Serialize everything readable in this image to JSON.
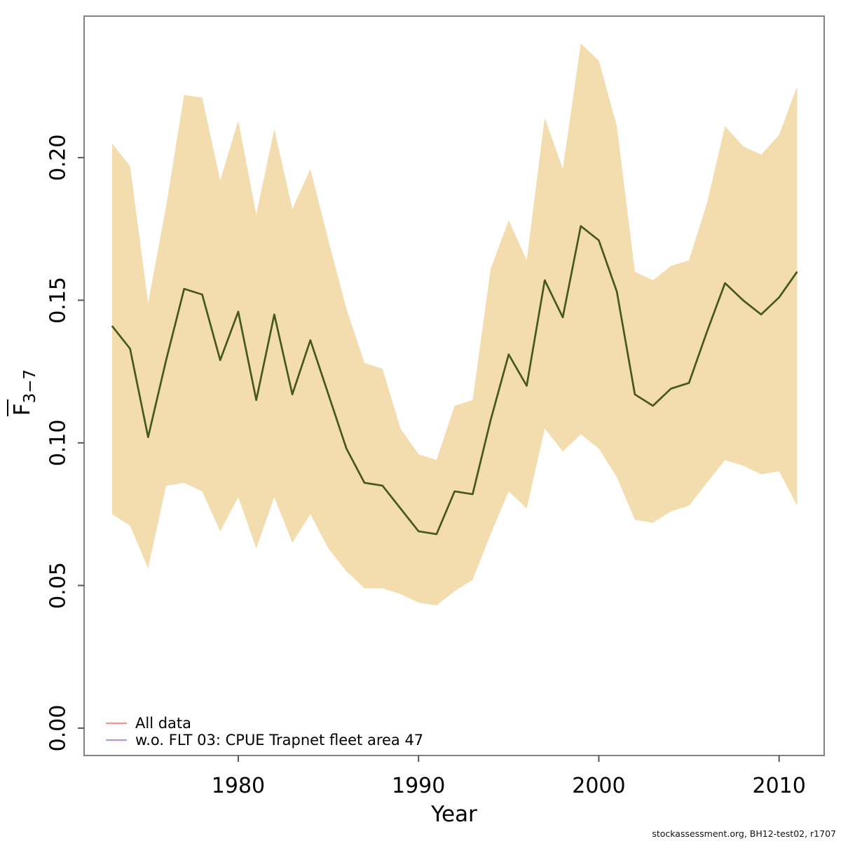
{
  "footer": "stockassessment.org, BH12-test02, r1707",
  "axes": {
    "x_label": "Year",
    "y_label_main": "F",
    "y_label_sub": "3−7",
    "x_ticks": [
      1980,
      1990,
      2000,
      2010
    ],
    "y_ticks": [
      "0.00",
      "0.05",
      "0.10",
      "0.15",
      "0.20"
    ],
    "x_range": [
      1971.45,
      2012.5
    ],
    "y_range": [
      -0.0096,
      0.2496
    ]
  },
  "legend": {
    "items": [
      {
        "label": "All data",
        "color": "#F79090"
      },
      {
        "label": "w.o. FLT 03: CPUE Trapnet fleet area 47",
        "color": "#B79BD0"
      }
    ]
  },
  "colors": {
    "band": "#F3DCAD",
    "line": "#46591D",
    "box": "#828282",
    "tick": "#555555"
  },
  "chart_data": {
    "type": "line",
    "title": "",
    "xlabel": "Year",
    "ylabel": "Fbar 3-7",
    "legend_position": "bottom-left",
    "grid": false,
    "xlim": [
      1971.45,
      2012.5
    ],
    "ylim": [
      -0.0096,
      0.2496
    ],
    "x": [
      1973,
      1974,
      1975,
      1976,
      1977,
      1978,
      1979,
      1980,
      1981,
      1982,
      1983,
      1984,
      1985,
      1986,
      1987,
      1988,
      1989,
      1990,
      1991,
      1992,
      1993,
      1994,
      1995,
      1996,
      1997,
      1998,
      1999,
      2000,
      2001,
      2002,
      2003,
      2004,
      2005,
      2006,
      2007,
      2008,
      2009,
      2010,
      2011
    ],
    "series": [
      {
        "name": "Fbar 3-7 estimate",
        "values": [
          0.141,
          0.133,
          0.102,
          0.129,
          0.154,
          0.152,
          0.129,
          0.146,
          0.115,
          0.145,
          0.117,
          0.136,
          0.117,
          0.098,
          0.086,
          0.085,
          0.077,
          0.069,
          0.068,
          0.083,
          0.082,
          0.108,
          0.131,
          0.12,
          0.157,
          0.144,
          0.176,
          0.171,
          0.153,
          0.117,
          0.113,
          0.119,
          0.121,
          0.139,
          0.156,
          0.15,
          0.145,
          0.151,
          0.16
        ]
      },
      {
        "name": "lower 95% CI",
        "values": [
          0.075,
          0.071,
          0.056,
          0.085,
          0.086,
          0.083,
          0.069,
          0.081,
          0.063,
          0.081,
          0.065,
          0.075,
          0.063,
          0.055,
          0.049,
          0.049,
          0.047,
          0.044,
          0.043,
          0.048,
          0.052,
          0.068,
          0.083,
          0.077,
          0.105,
          0.097,
          0.103,
          0.098,
          0.088,
          0.073,
          0.072,
          0.076,
          0.078,
          0.086,
          0.094,
          0.092,
          0.089,
          0.09,
          0.078
        ]
      },
      {
        "name": "upper 95% CI",
        "values": [
          0.205,
          0.197,
          0.149,
          0.183,
          0.222,
          0.221,
          0.192,
          0.213,
          0.18,
          0.21,
          0.182,
          0.196,
          0.171,
          0.147,
          0.128,
          0.126,
          0.105,
          0.096,
          0.094,
          0.113,
          0.115,
          0.161,
          0.178,
          0.164,
          0.214,
          0.196,
          0.24,
          0.234,
          0.211,
          0.16,
          0.157,
          0.162,
          0.164,
          0.184,
          0.211,
          0.204,
          0.201,
          0.208,
          0.225
        ]
      }
    ]
  }
}
